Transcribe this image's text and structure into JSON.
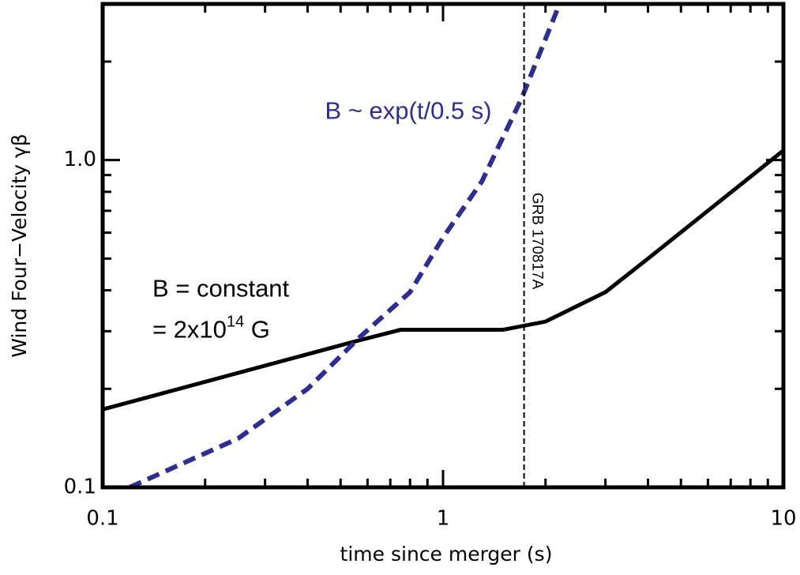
{
  "chart_data": {
    "type": "line",
    "xlabel": "time since merger (s)",
    "ylabel": "Wind Four−Velocity γβ",
    "xscale": "log",
    "yscale": "log",
    "xlim": [
      0.1,
      10
    ],
    "ylim": [
      0.1,
      3.0
    ],
    "xticks": [
      0.1,
      1,
      10
    ],
    "yticks": [
      0.1,
      {
        "value": 1,
        "label": "1.0"
      }
    ],
    "xminorticks": [
      0.2,
      0.3,
      0.4,
      0.5,
      0.6,
      0.7,
      0.8,
      0.9,
      2,
      3,
      4,
      5,
      6,
      7,
      8,
      9
    ],
    "yminorticks": [
      0.2,
      0.3,
      0.4,
      0.5,
      0.6,
      0.7,
      0.8,
      0.9,
      2
    ],
    "series": [
      {
        "color": "#000000",
        "dash": false,
        "x": [
          0.1,
          0.55,
          0.75,
          1.5,
          2,
          3,
          4,
          10
        ],
        "values": [
          0.173,
          0.279,
          0.303,
          0.303,
          0.321,
          0.395,
          0.5,
          1.07
        ]
      },
      {
        "color": "#2e2e8f",
        "dash": true,
        "x": [
          0.12,
          0.25,
          0.4,
          0.57,
          0.8,
          1.0,
          1.3,
          1.7,
          2.2
        ],
        "values": [
          0.1,
          0.141,
          0.2,
          0.288,
          0.395,
          0.58,
          0.86,
          1.54,
          3.0
        ]
      }
    ],
    "vline": {
      "x": 1.73,
      "label": "GRB 170817A"
    },
    "annotations": [
      {
        "text": "B ~ exp(t/0.5 s)",
        "x": 0.45,
        "y": 1.4,
        "color": "#2e2e8f"
      },
      {
        "text": "B = constant",
        "x": 0.14,
        "y": 0.4,
        "color": "#000000"
      },
      {
        "parts": [
          "= 2x10",
          "14",
          " G"
        ],
        "x": 0.14,
        "y": 0.3,
        "color": "#000000"
      }
    ]
  }
}
